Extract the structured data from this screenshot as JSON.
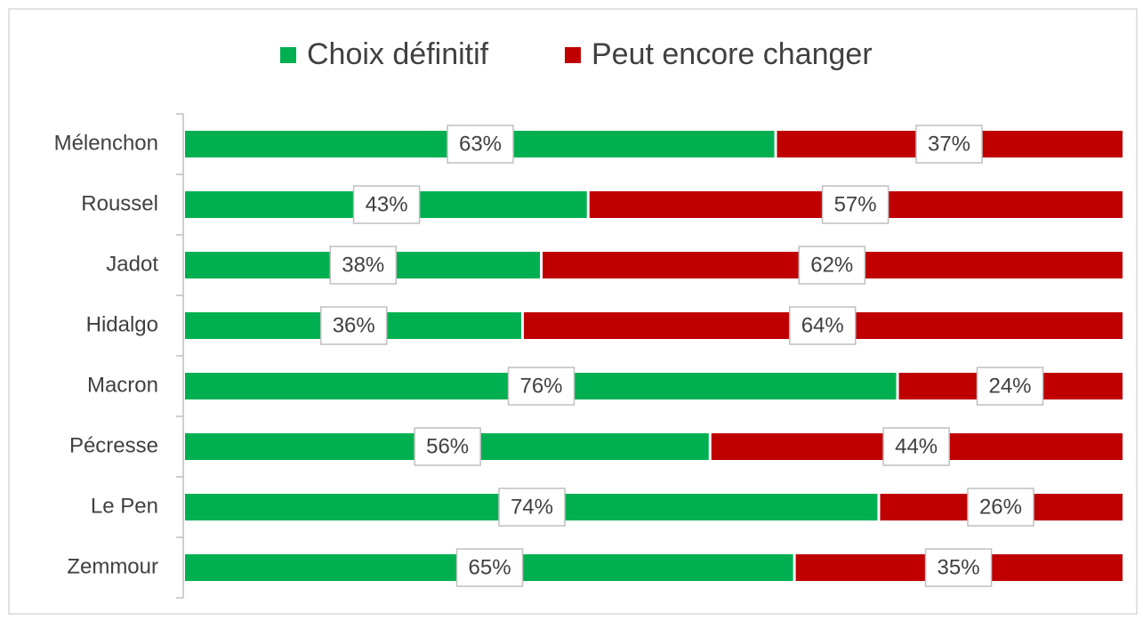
{
  "chart_data": {
    "type": "stacked_bar_horizontal",
    "categories": [
      "Mélenchon",
      "Roussel",
      "Jadot",
      "Hidalgo",
      "Macron",
      "Pécresse",
      "Le Pen",
      "Zemmour"
    ],
    "series": [
      {
        "name": "Choix définitif",
        "color": "#00b050",
        "values": [
          63,
          43,
          38,
          36,
          76,
          56,
          74,
          65
        ],
        "value_labels": [
          "63%",
          "43%",
          "38%",
          "36%",
          "76%",
          "56%",
          "74%",
          "65%"
        ]
      },
      {
        "name": "Peut encore changer",
        "color": "#c00000",
        "values": [
          37,
          57,
          62,
          64,
          24,
          44,
          26,
          35
        ],
        "value_labels": [
          "37%",
          "57%",
          "62%",
          "64%",
          "24%",
          "44%",
          "26%",
          "35%"
        ]
      }
    ],
    "xlim": [
      0,
      100
    ],
    "legend": "top"
  }
}
